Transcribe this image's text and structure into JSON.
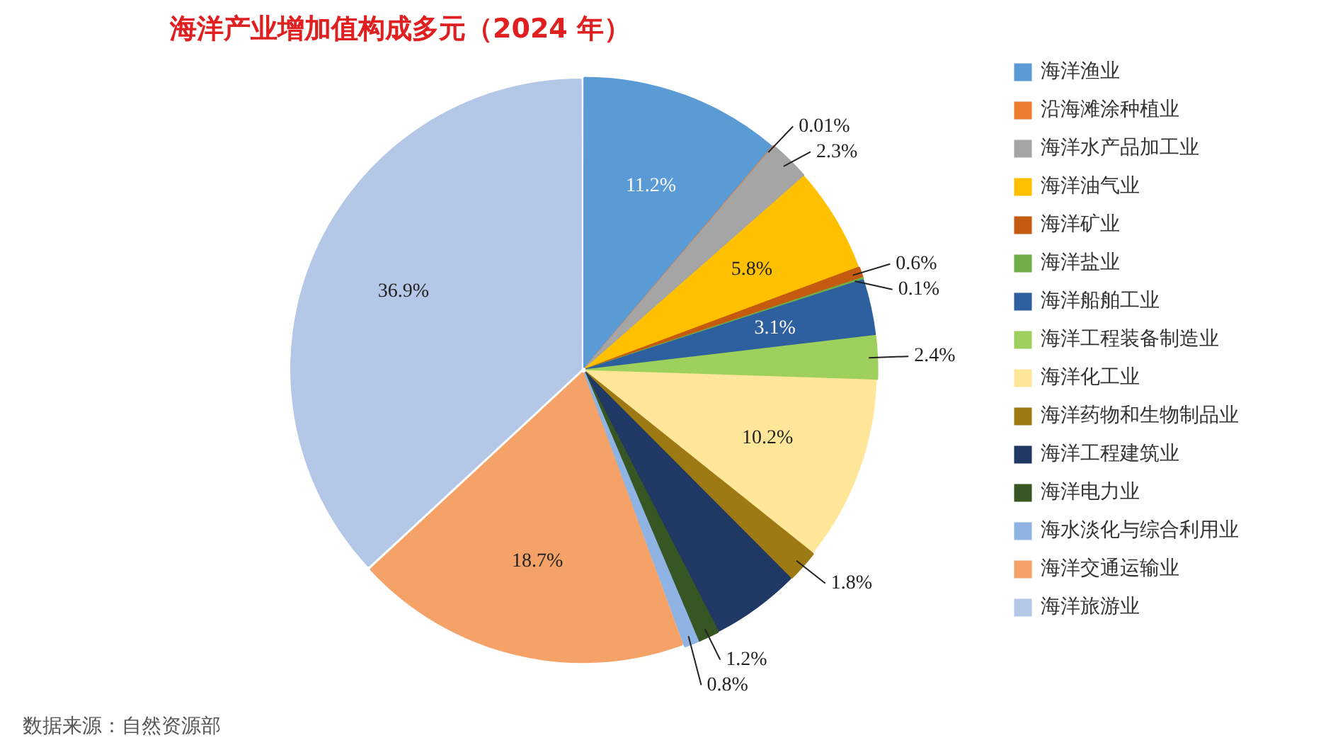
{
  "chart_data": {
    "type": "pie",
    "title": "海洋产业增加值构成多元（2024 年）",
    "categories": [
      "海洋渔业",
      "沿海滩涂种植业",
      "海洋水产品加工业",
      "海洋油气业",
      "海洋矿业",
      "海洋盐业",
      "海洋船舶工业",
      "海洋工程装备制造业",
      "海洋化工业",
      "海洋药物和生物制品业",
      "海洋工程建筑业",
      "海洋电力业",
      "海水淡化与综合利用业",
      "海洋交通运输业",
      "海洋旅游业"
    ],
    "values": [
      11.2,
      0.01,
      2.3,
      5.8,
      0.6,
      0.1,
      3.1,
      2.4,
      10.2,
      1.8,
      4.9,
      1.2,
      0.8,
      18.7,
      36.9
    ],
    "value_labels": [
      "11.2%",
      "0.01%",
      "2.3%",
      "5.8%",
      "0.6%",
      "0.1%",
      "3.1%",
      "2.4%",
      "10.2%",
      "1.8%",
      null,
      "1.2%",
      "0.8%",
      "18.7%",
      "36.9%"
    ],
    "colors": [
      "#5b9bd5",
      "#ed7d31",
      "#a5a5a5",
      "#ffc000",
      "#c55a11",
      "#70ad47",
      "#2e5f9e",
      "#9dd05c",
      "#ffe699",
      "#9e7a14",
      "#1f3864",
      "#375623",
      "#8fb4e3",
      "#f4a267",
      "#b4c7e7"
    ],
    "legend": "right",
    "annotations": [
      "数据来源：自然资源部"
    ]
  }
}
